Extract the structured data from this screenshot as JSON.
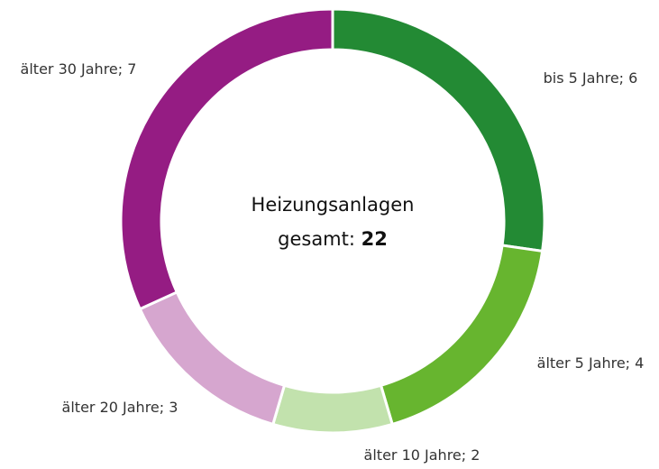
{
  "chart_data": {
    "type": "donut",
    "categories": [
      "bis 5 Jahre",
      "älter 5 Jahre",
      "älter 10 Jahre",
      "älter 20 Jahre",
      "älter 30 Jahre"
    ],
    "values": [
      6,
      4,
      2,
      3,
      7
    ],
    "colors": [
      "#238a34",
      "#67b52f",
      "#c2e2ad",
      "#d6a6cf",
      "#951c83"
    ],
    "separator": "; ",
    "center_title": "Heizungsanlagen",
    "center_label": "gesamt:",
    "total": 22
  }
}
